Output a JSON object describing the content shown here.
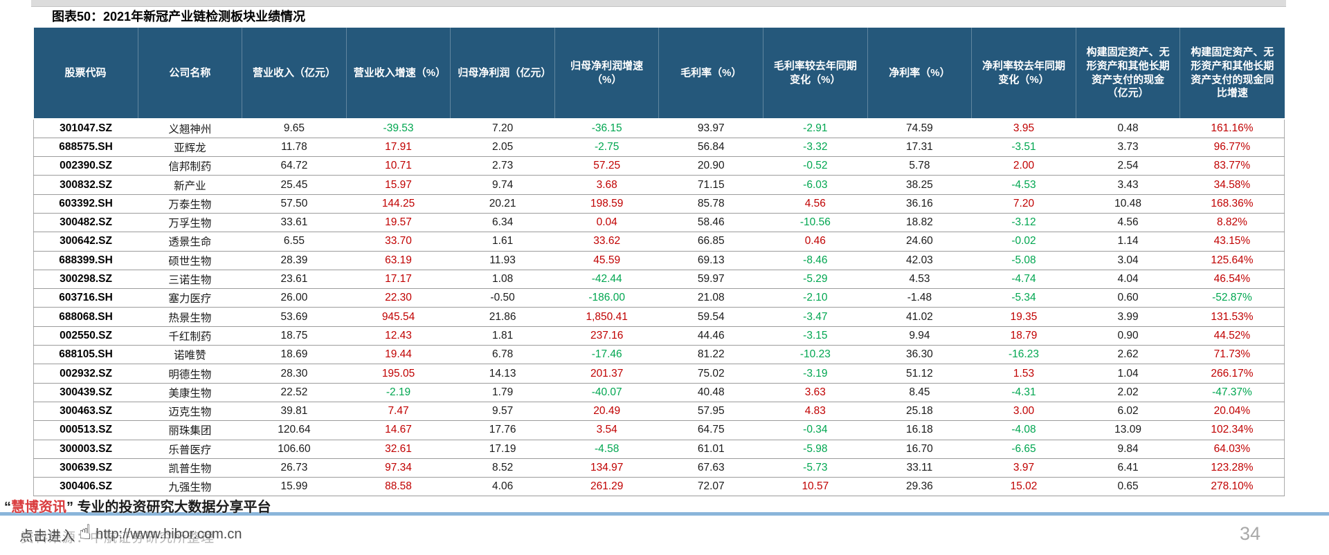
{
  "page": {
    "title": "图表50：2021年新冠产业链检测板块业绩情况",
    "page_number": "34"
  },
  "table": {
    "headers": [
      "股票代码",
      "公司名称",
      "营业收入（亿元）",
      "营业收入增速（%）",
      "归母净利润（亿元）",
      "归母净利润增速（%）",
      "毛利率（%）",
      "毛利率较去年同期变化（%）",
      "净利率（%）",
      "净利率较去年同期变化（%）",
      "构建固定资产、无形资产和其他长期资产支付的现金（亿元）",
      "构建固定资产、无形资产和其他长期资产支付的现金同比增速"
    ],
    "colored_columns": [
      3,
      5,
      7,
      9,
      11
    ],
    "rows": [
      [
        "301047.SZ",
        "义翘神州",
        "9.65",
        "-39.53",
        "7.20",
        "-36.15",
        "93.97",
        "-2.91",
        "74.59",
        "3.95",
        "0.48",
        "161.16%"
      ],
      [
        "688575.SH",
        "亚辉龙",
        "11.78",
        "17.91",
        "2.05",
        "-2.75",
        "56.84",
        "-3.32",
        "17.31",
        "-3.51",
        "3.73",
        "96.77%"
      ],
      [
        "002390.SZ",
        "信邦制药",
        "64.72",
        "10.71",
        "2.73",
        "57.25",
        "20.90",
        "-0.52",
        "5.78",
        "2.00",
        "2.54",
        "83.77%"
      ],
      [
        "300832.SZ",
        "新产业",
        "25.45",
        "15.97",
        "9.74",
        "3.68",
        "71.15",
        "-6.03",
        "38.25",
        "-4.53",
        "3.43",
        "34.58%"
      ],
      [
        "603392.SH",
        "万泰生物",
        "57.50",
        "144.25",
        "20.21",
        "198.59",
        "85.78",
        "4.56",
        "36.16",
        "7.20",
        "10.48",
        "168.36%"
      ],
      [
        "300482.SZ",
        "万孚生物",
        "33.61",
        "19.57",
        "6.34",
        "0.04",
        "58.46",
        "-10.56",
        "18.82",
        "-3.12",
        "4.56",
        "8.82%"
      ],
      [
        "300642.SZ",
        "透景生命",
        "6.55",
        "33.70",
        "1.61",
        "33.62",
        "66.85",
        "0.46",
        "24.60",
        "-0.02",
        "1.14",
        "43.15%"
      ],
      [
        "688399.SH",
        "硕世生物",
        "28.39",
        "63.19",
        "11.93",
        "45.59",
        "69.13",
        "-8.46",
        "42.03",
        "-5.08",
        "3.04",
        "125.64%"
      ],
      [
        "300298.SZ",
        "三诺生物",
        "23.61",
        "17.17",
        "1.08",
        "-42.44",
        "59.97",
        "-5.29",
        "4.53",
        "-4.74",
        "4.04",
        "46.54%"
      ],
      [
        "603716.SH",
        "塞力医疗",
        "26.00",
        "22.30",
        "-0.50",
        "-186.00",
        "21.08",
        "-2.10",
        "-1.48",
        "-5.34",
        "0.60",
        "-52.87%"
      ],
      [
        "688068.SH",
        "热景生物",
        "53.69",
        "945.54",
        "21.86",
        "1,850.41",
        "59.54",
        "-3.47",
        "41.02",
        "19.35",
        "3.99",
        "131.53%"
      ],
      [
        "002550.SZ",
        "千红制药",
        "18.75",
        "12.43",
        "1.81",
        "237.16",
        "44.46",
        "-3.15",
        "9.94",
        "18.79",
        "0.90",
        "44.52%"
      ],
      [
        "688105.SH",
        "诺唯赞",
        "18.69",
        "19.44",
        "6.78",
        "-17.46",
        "81.22",
        "-10.23",
        "36.30",
        "-16.23",
        "2.62",
        "71.73%"
      ],
      [
        "002932.SZ",
        "明德生物",
        "28.30",
        "195.05",
        "14.13",
        "201.37",
        "75.02",
        "-3.19",
        "51.12",
        "1.53",
        "1.04",
        "266.17%"
      ],
      [
        "300439.SZ",
        "美康生物",
        "22.52",
        "-2.19",
        "1.79",
        "-40.07",
        "40.48",
        "3.63",
        "8.45",
        "-4.31",
        "2.02",
        "-47.37%"
      ],
      [
        "300463.SZ",
        "迈克生物",
        "39.81",
        "7.47",
        "9.57",
        "20.49",
        "57.95",
        "4.83",
        "25.18",
        "3.00",
        "6.02",
        "20.04%"
      ],
      [
        "000513.SZ",
        "丽珠集团",
        "120.64",
        "14.67",
        "17.76",
        "3.54",
        "64.75",
        "-0.34",
        "16.18",
        "-4.08",
        "13.09",
        "102.34%"
      ],
      [
        "300003.SZ",
        "乐普医疗",
        "106.60",
        "32.61",
        "17.19",
        "-4.58",
        "61.01",
        "-5.98",
        "16.70",
        "-6.65",
        "9.84",
        "64.03%"
      ],
      [
        "300639.SZ",
        "凯普生物",
        "26.73",
        "97.34",
        "8.52",
        "134.97",
        "67.63",
        "-5.73",
        "33.11",
        "3.97",
        "6.41",
        "123.28%"
      ],
      [
        "300406.SZ",
        "九强生物",
        "15.99",
        "88.58",
        "4.06",
        "261.29",
        "72.07",
        "10.57",
        "29.36",
        "15.02",
        "0.65",
        "278.10%"
      ]
    ]
  },
  "footer": {
    "quote_open": "“",
    "brand": "慧博资讯",
    "quote_close": "”",
    "tagline": "专业的投资研究大数据分享平台",
    "click_text": "点击进入",
    "hand_icon": "☝",
    "url": "http://www.hibor.com.cn",
    "source_text": "资料来源：中航证券研究所整理"
  },
  "colors": {
    "header_bg": "#25587B",
    "positive": "#C00000",
    "negative": "#00A650",
    "accent_line": "#8AB5DA"
  }
}
